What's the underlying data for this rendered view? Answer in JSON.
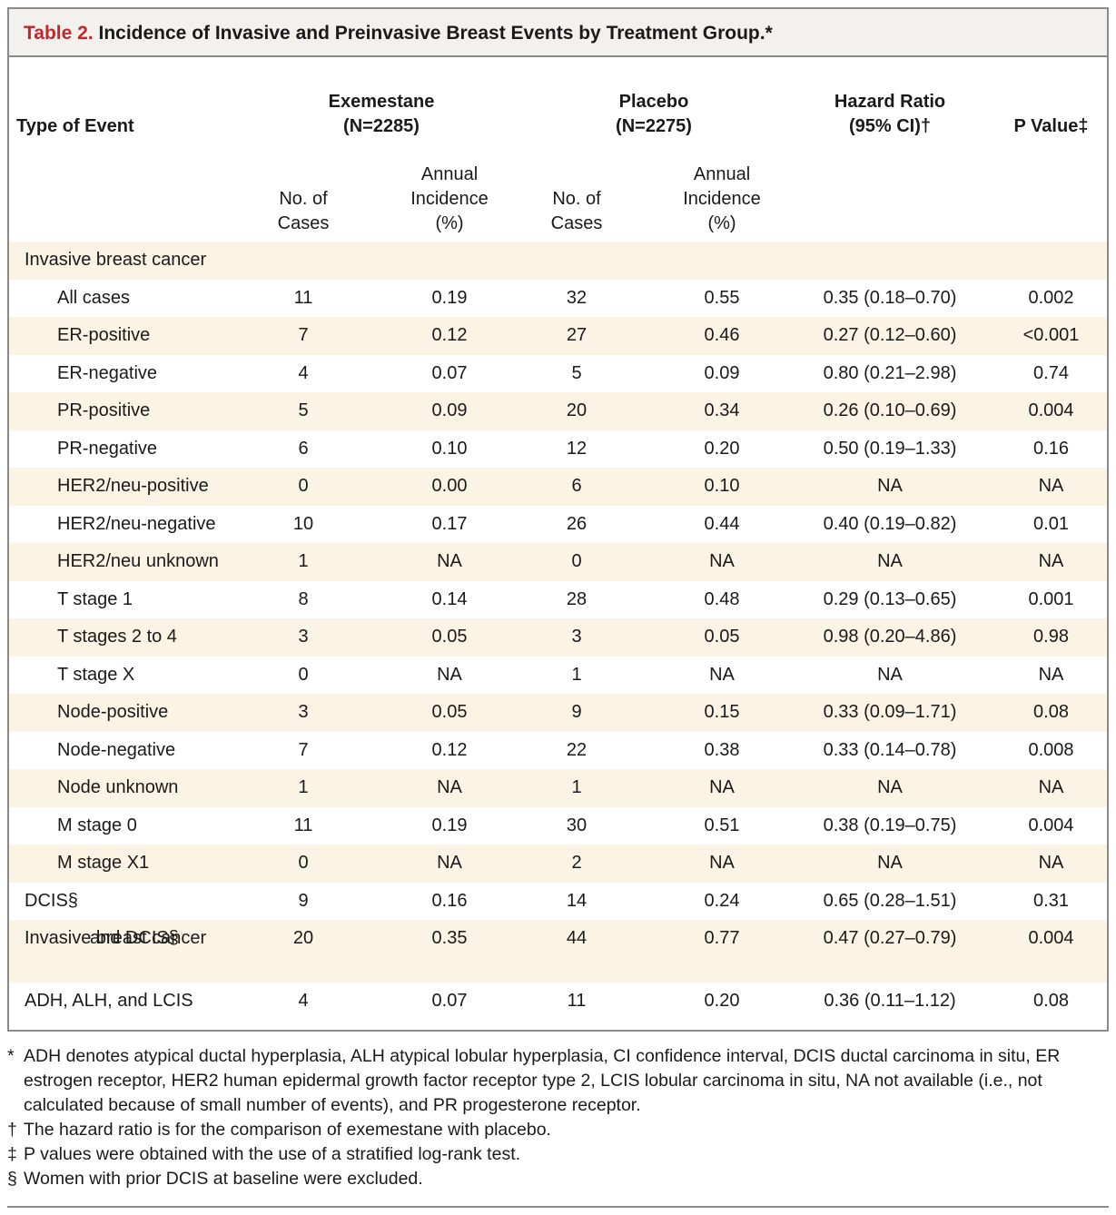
{
  "title": {
    "label": "Table 2.",
    "text": "Incidence of Invasive and Preinvasive Breast Events by Treatment Group.*"
  },
  "headers": {
    "type_of_event": "Type of Event",
    "exemestane": [
      "Exemestane",
      "(N=2285)"
    ],
    "placebo": [
      "Placebo",
      "(N=2275)"
    ],
    "hazard_ratio": [
      "Hazard Ratio",
      "(95% CI)†"
    ],
    "p_value": "P Value‡",
    "no_of_cases": [
      "No. of",
      "Cases"
    ],
    "annual_incidence": [
      "Annual",
      "Incidence",
      "(%)"
    ]
  },
  "rows": [
    {
      "label": "Invasive breast cancer",
      "indent": false,
      "alt": true,
      "cells": [
        "",
        "",
        "",
        "",
        "",
        ""
      ]
    },
    {
      "label": "All cases",
      "indent": true,
      "alt": false,
      "cells": [
        "11",
        "0.19",
        "32",
        "0.55",
        "0.35 (0.18–0.70)",
        "0.002"
      ]
    },
    {
      "label": "ER-positive",
      "indent": true,
      "alt": true,
      "cells": [
        "7",
        "0.12",
        "27",
        "0.46",
        "0.27 (0.12–0.60)",
        "<0.001"
      ]
    },
    {
      "label": "ER-negative",
      "indent": true,
      "alt": false,
      "cells": [
        "4",
        "0.07",
        "5",
        "0.09",
        "0.80 (0.21–2.98)",
        "0.74"
      ]
    },
    {
      "label": "PR-positive",
      "indent": true,
      "alt": true,
      "cells": [
        "5",
        "0.09",
        "20",
        "0.34",
        "0.26 (0.10–0.69)",
        "0.004"
      ]
    },
    {
      "label": "PR-negative",
      "indent": true,
      "alt": false,
      "cells": [
        "6",
        "0.10",
        "12",
        "0.20",
        "0.50 (0.19–1.33)",
        "0.16"
      ]
    },
    {
      "label": "HER2/neu-positive",
      "indent": true,
      "alt": true,
      "cells": [
        "0",
        "0.00",
        "6",
        "0.10",
        "NA",
        "NA"
      ]
    },
    {
      "label": "HER2/neu-negative",
      "indent": true,
      "alt": false,
      "cells": [
        "10",
        "0.17",
        "26",
        "0.44",
        "0.40 (0.19–0.82)",
        "0.01"
      ]
    },
    {
      "label": "HER2/neu unknown",
      "indent": true,
      "alt": true,
      "cells": [
        "1",
        "NA",
        "0",
        "NA",
        "NA",
        "NA"
      ]
    },
    {
      "label": "T stage 1",
      "indent": true,
      "alt": false,
      "cells": [
        "8",
        "0.14",
        "28",
        "0.48",
        "0.29 (0.13–0.65)",
        "0.001"
      ]
    },
    {
      "label": "T stages 2 to 4",
      "indent": true,
      "alt": true,
      "cells": [
        "3",
        "0.05",
        "3",
        "0.05",
        "0.98 (0.20–4.86)",
        "0.98"
      ]
    },
    {
      "label": "T stage X",
      "indent": true,
      "alt": false,
      "cells": [
        "0",
        "NA",
        "1",
        "NA",
        "NA",
        "NA"
      ]
    },
    {
      "label": "Node-positive",
      "indent": true,
      "alt": true,
      "cells": [
        "3",
        "0.05",
        "9",
        "0.15",
        "0.33 (0.09–1.71)",
        "0.08"
      ]
    },
    {
      "label": "Node-negative",
      "indent": true,
      "alt": false,
      "cells": [
        "7",
        "0.12",
        "22",
        "0.38",
        "0.33 (0.14–0.78)",
        "0.008"
      ]
    },
    {
      "label": "Node unknown",
      "indent": true,
      "alt": true,
      "cells": [
        "1",
        "NA",
        "1",
        "NA",
        "NA",
        "NA"
      ]
    },
    {
      "label": "M stage 0",
      "indent": true,
      "alt": false,
      "cells": [
        "11",
        "0.19",
        "30",
        "0.51",
        "0.38 (0.19–0.75)",
        "0.004"
      ]
    },
    {
      "label": "M stage X1",
      "indent": true,
      "alt": true,
      "cells": [
        "0",
        "NA",
        "2",
        "NA",
        "NA",
        "NA"
      ]
    },
    {
      "label": "DCIS§",
      "indent": false,
      "alt": false,
      "cells": [
        "9",
        "0.16",
        "14",
        "0.24",
        "0.65 (0.28–1.51)",
        "0.31"
      ]
    },
    {
      "label": "Invasive breast cancer",
      "label2": "and DCIS§",
      "indent": false,
      "alt": true,
      "cells": [
        "20",
        "0.35",
        "44",
        "0.77",
        "0.47 (0.27–0.79)",
        "0.004"
      ]
    },
    {
      "label": "ADH, ALH, and LCIS",
      "indent": false,
      "alt": false,
      "cells": [
        "4",
        "0.07",
        "11",
        "0.20",
        "0.36 (0.11–1.12)",
        "0.08"
      ]
    }
  ],
  "footnotes": [
    {
      "mark": "*",
      "text": "ADH denotes atypical ductal hyperplasia, ALH atypical lobular hyperplasia, CI confidence interval, DCIS ductal carcinoma in situ, ER estrogen receptor, HER2 human epidermal growth factor receptor type 2, LCIS lobular carcinoma in situ, NA not available (i.e., not calculated because of small number of events), and PR progesterone receptor."
    },
    {
      "mark": "†",
      "text": "The hazard ratio is for the comparison of exemestane with placebo."
    },
    {
      "mark": "‡",
      "text": "P values were obtained with the use of a stratified log-rank test."
    },
    {
      "mark": "§",
      "text": "Women with prior DCIS at baseline were excluded."
    }
  ]
}
